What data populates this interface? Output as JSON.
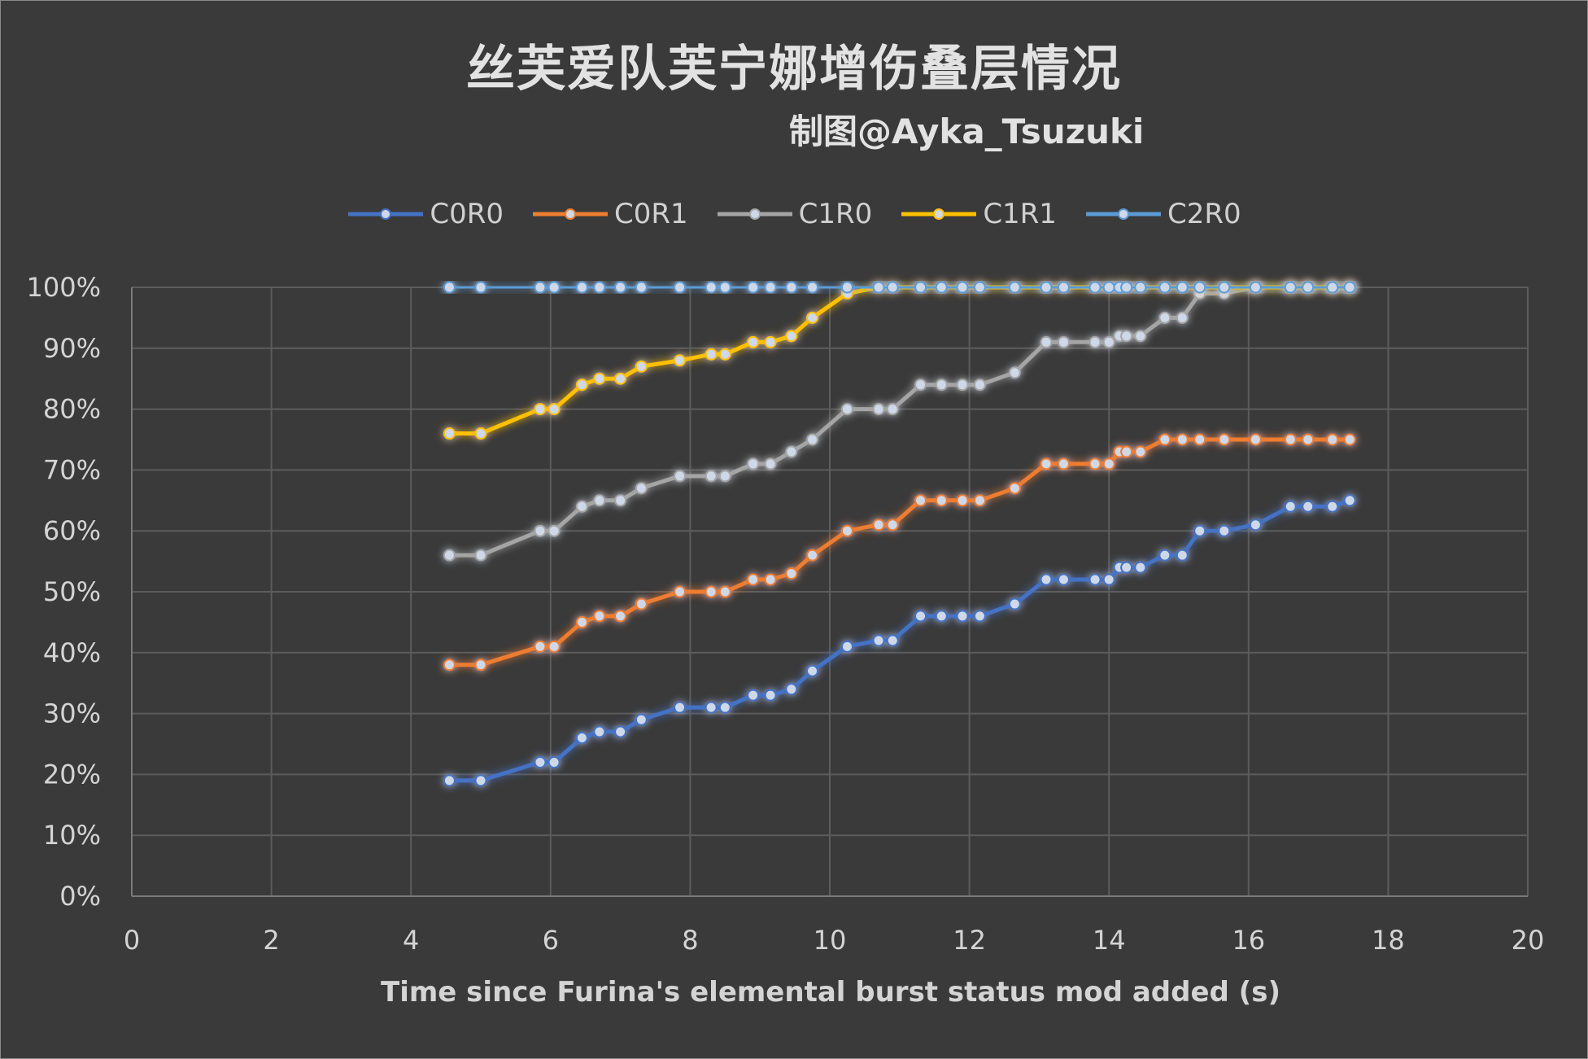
{
  "chart_data": {
    "type": "line",
    "title": "丝芙爱队芙宁娜增伤叠层情况",
    "subtitle": "制图@Ayka_Tsuzuki",
    "xlabel": "Time since Furina's elemental burst status mod added (s)",
    "ylabel": "",
    "xlim": [
      0,
      20
    ],
    "ylim": [
      0,
      1
    ],
    "x_ticks": [
      "0",
      "2",
      "4",
      "6",
      "8",
      "10",
      "12",
      "14",
      "16",
      "18",
      "20"
    ],
    "y_ticks": [
      "0%",
      "10%",
      "20%",
      "30%",
      "40%",
      "50%",
      "60%",
      "70%",
      "80%",
      "90%",
      "100%"
    ],
    "grid": true,
    "legend_position": "top",
    "series": [
      {
        "name": "C0R0",
        "color": "#4472c4",
        "points": [
          [
            4.55,
            0.19
          ],
          [
            5.0,
            0.19
          ],
          [
            5.85,
            0.22
          ],
          [
            6.05,
            0.22
          ],
          [
            6.45,
            0.26
          ],
          [
            6.7,
            0.27
          ],
          [
            7.0,
            0.27
          ],
          [
            7.3,
            0.29
          ],
          [
            7.85,
            0.31
          ],
          [
            8.3,
            0.31
          ],
          [
            8.5,
            0.31
          ],
          [
            8.9,
            0.33
          ],
          [
            9.15,
            0.33
          ],
          [
            9.45,
            0.34
          ],
          [
            9.75,
            0.37
          ],
          [
            10.25,
            0.41
          ],
          [
            10.7,
            0.42
          ],
          [
            10.9,
            0.42
          ],
          [
            11.3,
            0.46
          ],
          [
            11.6,
            0.46
          ],
          [
            11.9,
            0.46
          ],
          [
            12.15,
            0.46
          ],
          [
            12.65,
            0.48
          ],
          [
            13.1,
            0.52
          ],
          [
            13.35,
            0.52
          ],
          [
            13.8,
            0.52
          ],
          [
            14.0,
            0.52
          ],
          [
            14.15,
            0.54
          ],
          [
            14.25,
            0.54
          ],
          [
            14.45,
            0.54
          ],
          [
            14.8,
            0.56
          ],
          [
            15.05,
            0.56
          ],
          [
            15.3,
            0.6
          ],
          [
            15.65,
            0.6
          ],
          [
            16.1,
            0.61
          ],
          [
            16.6,
            0.64
          ],
          [
            16.85,
            0.64
          ],
          [
            17.2,
            0.64
          ],
          [
            17.45,
            0.65
          ]
        ]
      },
      {
        "name": "C0R1",
        "color": "#ed7d31",
        "points": [
          [
            4.55,
            0.38
          ],
          [
            5.0,
            0.38
          ],
          [
            5.85,
            0.41
          ],
          [
            6.05,
            0.41
          ],
          [
            6.45,
            0.45
          ],
          [
            6.7,
            0.46
          ],
          [
            7.0,
            0.46
          ],
          [
            7.3,
            0.48
          ],
          [
            7.85,
            0.5
          ],
          [
            8.3,
            0.5
          ],
          [
            8.5,
            0.5
          ],
          [
            8.9,
            0.52
          ],
          [
            9.15,
            0.52
          ],
          [
            9.45,
            0.53
          ],
          [
            9.75,
            0.56
          ],
          [
            10.25,
            0.6
          ],
          [
            10.7,
            0.61
          ],
          [
            10.9,
            0.61
          ],
          [
            11.3,
            0.65
          ],
          [
            11.6,
            0.65
          ],
          [
            11.9,
            0.65
          ],
          [
            12.15,
            0.65
          ],
          [
            12.65,
            0.67
          ],
          [
            13.1,
            0.71
          ],
          [
            13.35,
            0.71
          ],
          [
            13.8,
            0.71
          ],
          [
            14.0,
            0.71
          ],
          [
            14.15,
            0.73
          ],
          [
            14.25,
            0.73
          ],
          [
            14.45,
            0.73
          ],
          [
            14.8,
            0.75
          ],
          [
            15.05,
            0.75
          ],
          [
            15.3,
            0.75
          ],
          [
            15.65,
            0.75
          ],
          [
            16.1,
            0.75
          ],
          [
            16.6,
            0.75
          ],
          [
            16.85,
            0.75
          ],
          [
            17.2,
            0.75
          ],
          [
            17.45,
            0.75
          ]
        ]
      },
      {
        "name": "C1R0",
        "color": "#a5a5a5",
        "points": [
          [
            4.55,
            0.56
          ],
          [
            5.0,
            0.56
          ],
          [
            5.85,
            0.6
          ],
          [
            6.05,
            0.6
          ],
          [
            6.45,
            0.64
          ],
          [
            6.7,
            0.65
          ],
          [
            7.0,
            0.65
          ],
          [
            7.3,
            0.67
          ],
          [
            7.85,
            0.69
          ],
          [
            8.3,
            0.69
          ],
          [
            8.5,
            0.69
          ],
          [
            8.9,
            0.71
          ],
          [
            9.15,
            0.71
          ],
          [
            9.45,
            0.73
          ],
          [
            9.75,
            0.75
          ],
          [
            10.25,
            0.8
          ],
          [
            10.7,
            0.8
          ],
          [
            10.9,
            0.8
          ],
          [
            11.3,
            0.84
          ],
          [
            11.6,
            0.84
          ],
          [
            11.9,
            0.84
          ],
          [
            12.15,
            0.84
          ],
          [
            12.65,
            0.86
          ],
          [
            13.1,
            0.91
          ],
          [
            13.35,
            0.91
          ],
          [
            13.8,
            0.91
          ],
          [
            14.0,
            0.91
          ],
          [
            14.15,
            0.92
          ],
          [
            14.25,
            0.92
          ],
          [
            14.45,
            0.92
          ],
          [
            14.8,
            0.95
          ],
          [
            15.05,
            0.95
          ],
          [
            15.3,
            0.99
          ],
          [
            15.65,
            0.99
          ],
          [
            16.1,
            1.0
          ],
          [
            16.6,
            1.0
          ],
          [
            16.85,
            1.0
          ],
          [
            17.2,
            1.0
          ],
          [
            17.45,
            1.0
          ]
        ]
      },
      {
        "name": "C1R1",
        "color": "#ffc000",
        "points": [
          [
            4.55,
            0.76
          ],
          [
            5.0,
            0.76
          ],
          [
            5.85,
            0.8
          ],
          [
            6.05,
            0.8
          ],
          [
            6.45,
            0.84
          ],
          [
            6.7,
            0.85
          ],
          [
            7.0,
            0.85
          ],
          [
            7.3,
            0.87
          ],
          [
            7.85,
            0.88
          ],
          [
            8.3,
            0.89
          ],
          [
            8.5,
            0.89
          ],
          [
            8.9,
            0.91
          ],
          [
            9.15,
            0.91
          ],
          [
            9.45,
            0.92
          ],
          [
            9.75,
            0.95
          ],
          [
            10.25,
            0.99
          ],
          [
            10.7,
            1.0
          ],
          [
            10.9,
            1.0
          ],
          [
            11.3,
            1.0
          ],
          [
            11.6,
            1.0
          ],
          [
            11.9,
            1.0
          ],
          [
            12.15,
            1.0
          ],
          [
            12.65,
            1.0
          ],
          [
            13.1,
            1.0
          ],
          [
            13.35,
            1.0
          ],
          [
            13.8,
            1.0
          ],
          [
            14.0,
            1.0
          ],
          [
            14.15,
            1.0
          ],
          [
            14.25,
            1.0
          ],
          [
            14.45,
            1.0
          ],
          [
            14.8,
            1.0
          ],
          [
            15.05,
            1.0
          ],
          [
            15.3,
            1.0
          ],
          [
            15.65,
            1.0
          ],
          [
            16.1,
            1.0
          ],
          [
            16.6,
            1.0
          ],
          [
            16.85,
            1.0
          ],
          [
            17.2,
            1.0
          ],
          [
            17.45,
            1.0
          ]
        ]
      },
      {
        "name": "C2R0",
        "color": "#5b9bd5",
        "points": [
          [
            4.55,
            1.0
          ],
          [
            5.0,
            1.0
          ],
          [
            5.85,
            1.0
          ],
          [
            6.05,
            1.0
          ],
          [
            6.45,
            1.0
          ],
          [
            6.7,
            1.0
          ],
          [
            7.0,
            1.0
          ],
          [
            7.3,
            1.0
          ],
          [
            7.85,
            1.0
          ],
          [
            8.3,
            1.0
          ],
          [
            8.5,
            1.0
          ],
          [
            8.9,
            1.0
          ],
          [
            9.15,
            1.0
          ],
          [
            9.45,
            1.0
          ],
          [
            9.75,
            1.0
          ],
          [
            10.25,
            1.0
          ],
          [
            10.7,
            1.0
          ],
          [
            10.9,
            1.0
          ],
          [
            11.3,
            1.0
          ],
          [
            11.6,
            1.0
          ],
          [
            11.9,
            1.0
          ],
          [
            12.15,
            1.0
          ],
          [
            12.65,
            1.0
          ],
          [
            13.1,
            1.0
          ],
          [
            13.35,
            1.0
          ],
          [
            13.8,
            1.0
          ],
          [
            14.0,
            1.0
          ],
          [
            14.15,
            1.0
          ],
          [
            14.25,
            1.0
          ],
          [
            14.45,
            1.0
          ],
          [
            14.8,
            1.0
          ],
          [
            15.05,
            1.0
          ],
          [
            15.3,
            1.0
          ],
          [
            15.65,
            1.0
          ],
          [
            16.1,
            1.0
          ],
          [
            16.6,
            1.0
          ],
          [
            16.85,
            1.0
          ],
          [
            17.2,
            1.0
          ],
          [
            17.45,
            1.0
          ]
        ]
      }
    ]
  }
}
